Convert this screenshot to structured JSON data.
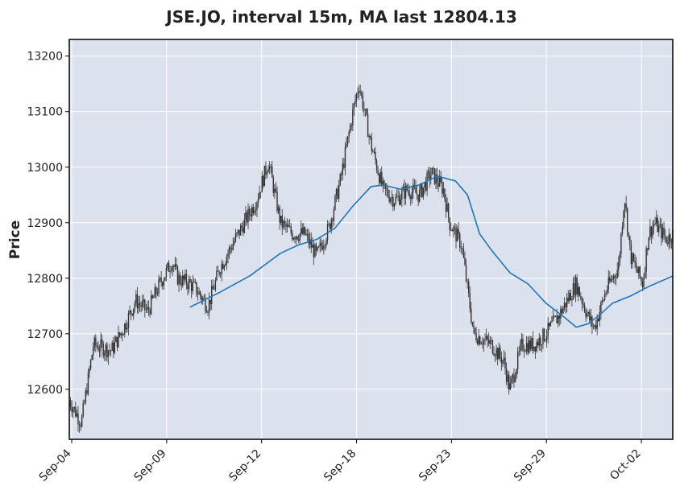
{
  "chart_data": {
    "type": "candlestick",
    "title": "JSE.JO, interval 15m, MA last 12804.13",
    "ylabel": "Price",
    "ylim": [
      12510,
      13230
    ],
    "yticks": [
      12600,
      12700,
      12800,
      12900,
      13000,
      13100,
      13200
    ],
    "xticks": [
      "Sep-04",
      "Sep-09",
      "Sep-12",
      "Sep-18",
      "Sep-23",
      "Sep-29",
      "Oct-02"
    ],
    "grid": true,
    "colors": {
      "plot_bg": "#dce1ee",
      "grid": "#ffffff",
      "candle": "#333333",
      "ma_line": "#1f77b4"
    },
    "price_path": [
      [
        0,
        12580
      ],
      [
        0.02,
        12540
      ],
      [
        0.04,
        12680
      ],
      [
        0.07,
        12670
      ],
      [
        0.09,
        12710
      ],
      [
        0.11,
        12760
      ],
      [
        0.13,
        12740
      ],
      [
        0.15,
        12790
      ],
      [
        0.17,
        12830
      ],
      [
        0.18,
        12800
      ],
      [
        0.2,
        12790
      ],
      [
        0.21,
        12780
      ],
      [
        0.23,
        12750
      ],
      [
        0.25,
        12820
      ],
      [
        0.28,
        12880
      ],
      [
        0.31,
        12940
      ],
      [
        0.33,
        13010
      ],
      [
        0.35,
        12900
      ],
      [
        0.37,
        12880
      ],
      [
        0.39,
        12880
      ],
      [
        0.41,
        12840
      ],
      [
        0.43,
        12890
      ],
      [
        0.45,
        12980
      ],
      [
        0.47,
        13100
      ],
      [
        0.48,
        13150
      ],
      [
        0.5,
        13040
      ],
      [
        0.52,
        12960
      ],
      [
        0.54,
        12940
      ],
      [
        0.56,
        12960
      ],
      [
        0.58,
        12950
      ],
      [
        0.6,
        12990
      ],
      [
        0.62,
        12960
      ],
      [
        0.63,
        12900
      ],
      [
        0.65,
        12860
      ],
      [
        0.67,
        12700
      ],
      [
        0.7,
        12680
      ],
      [
        0.72,
        12650
      ],
      [
        0.73,
        12600
      ],
      [
        0.75,
        12680
      ],
      [
        0.77,
        12680
      ],
      [
        0.79,
        12700
      ],
      [
        0.81,
        12730
      ],
      [
        0.84,
        12790
      ],
      [
        0.86,
        12730
      ],
      [
        0.87,
        12710
      ],
      [
        0.89,
        12780
      ],
      [
        0.91,
        12820
      ],
      [
        0.92,
        12950
      ],
      [
        0.93,
        12840
      ],
      [
        0.95,
        12790
      ],
      [
        0.96,
        12880
      ],
      [
        0.97,
        12900
      ],
      [
        0.99,
        12870
      ],
      [
        1.0,
        12880
      ]
    ],
    "ma_line": [
      [
        0.2,
        12748
      ],
      [
        0.25,
        12775
      ],
      [
        0.3,
        12805
      ],
      [
        0.35,
        12845
      ],
      [
        0.38,
        12860
      ],
      [
        0.41,
        12870
      ],
      [
        0.44,
        12890
      ],
      [
        0.47,
        12930
      ],
      [
        0.5,
        12965
      ],
      [
        0.52,
        12968
      ],
      [
        0.55,
        12960
      ],
      [
        0.58,
        12968
      ],
      [
        0.61,
        12984
      ],
      [
        0.64,
        12975
      ],
      [
        0.66,
        12950
      ],
      [
        0.68,
        12880
      ],
      [
        0.7,
        12850
      ],
      [
        0.73,
        12810
      ],
      [
        0.76,
        12790
      ],
      [
        0.79,
        12755
      ],
      [
        0.82,
        12730
      ],
      [
        0.84,
        12712
      ],
      [
        0.86,
        12718
      ],
      [
        0.88,
        12735
      ],
      [
        0.9,
        12755
      ],
      [
        0.93,
        12768
      ],
      [
        0.96,
        12785
      ],
      [
        1.0,
        12804
      ]
    ]
  }
}
